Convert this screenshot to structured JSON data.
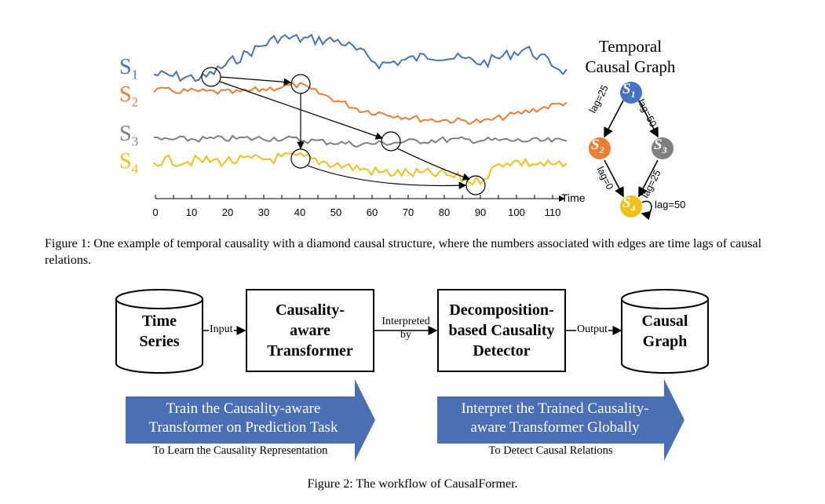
{
  "figure1": {
    "series_labels": [
      {
        "text": "S",
        "sub": "1",
        "color": "#4472c4"
      },
      {
        "text": "S",
        "sub": "2",
        "color": "#ed7d31"
      },
      {
        "text": "S",
        "sub": "3",
        "color": "#7f7f7f"
      },
      {
        "text": "S",
        "sub": "4",
        "color": "#f2c012"
      }
    ],
    "axis": {
      "label": "Time",
      "ticks": [
        "0",
        "10",
        "20",
        "30",
        "40",
        "50",
        "60",
        "70",
        "80",
        "90",
        "100",
        "110"
      ]
    },
    "graph": {
      "title_line1": "Temporal",
      "title_line2": "Causal Graph",
      "nodes": [
        {
          "id": "S1",
          "text": "S",
          "sub": "1",
          "color": "#4472c4"
        },
        {
          "id": "S2",
          "text": "S",
          "sub": "2",
          "color": "#ed7d31"
        },
        {
          "id": "S3",
          "text": "S",
          "sub": "3",
          "color": "#7f7f7f"
        },
        {
          "id": "S4",
          "text": "S",
          "sub": "4",
          "color": "#f2c012"
        }
      ],
      "edge_labels": {
        "s1_s2": "lag=25",
        "s1_s3": "lag=50",
        "s2_s4": "lag=0",
        "s3_s4": "lag=25",
        "s4_self": "lag=50"
      }
    },
    "caption": "Figure 1: One example of temporal causality with a diamond causal structure, where the numbers associated with edges are time lags of causal relations."
  },
  "figure2": {
    "input_cylinder": {
      "line1": "Time",
      "line2": "Series"
    },
    "transformer_box": {
      "line1": "Causality-",
      "line2": "aware",
      "line3": "Transformer"
    },
    "detector_box": {
      "line1": "Decomposition-",
      "line2": "based Causality",
      "line3": "Detector"
    },
    "output_cylinder": {
      "line1": "Causal",
      "line2": "Graph"
    },
    "connectors": {
      "input": "Input",
      "interpreted_line1": "Interpreted",
      "interpreted_line2": "by",
      "output": "Output"
    },
    "left_arrow": {
      "line1": "Train the Causality-aware",
      "line2": "Transformer on Prediction Task",
      "sub": "To Learn the Causality Representation"
    },
    "right_arrow": {
      "line1": "Interpret the Trained Causality-",
      "line2": "aware Transformer Globally",
      "sub": "To Detect Causal Relations"
    },
    "banner_color": "#4a6fb5",
    "caption": "Figure 2: The workflow of CausalFormer."
  }
}
